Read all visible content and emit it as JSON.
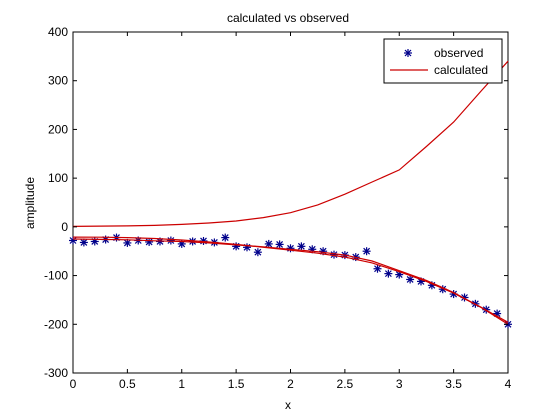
{
  "chart_data": {
    "type": "line",
    "title": "calculated vs observed",
    "xlabel": "x",
    "ylabel": "amplitude",
    "xlim": [
      0,
      4
    ],
    "ylim": [
      -300,
      400
    ],
    "xticks": [
      0,
      0.5,
      1,
      1.5,
      2,
      2.5,
      3,
      3.5,
      4
    ],
    "yticks": [
      -300,
      -200,
      -100,
      0,
      100,
      200,
      300,
      400
    ],
    "xtick_labels": [
      "0",
      "0.5",
      "1",
      "1.5",
      "2",
      "2.5",
      "3",
      "3.5",
      "4"
    ],
    "ytick_labels": [
      "-300",
      "-200",
      "-100",
      "0",
      "100",
      "200",
      "300",
      "400"
    ],
    "grid": false,
    "legend": {
      "position": "top-right",
      "entries": [
        "observed",
        "calculated"
      ]
    },
    "colors": {
      "observed": "#00008b",
      "calculated": "#cc0000",
      "axes": "#000000"
    },
    "series": [
      {
        "name": "observed",
        "style": "markers",
        "marker": "asterisk",
        "x": [
          0,
          0.1,
          0.2,
          0.3,
          0.4,
          0.5,
          0.6,
          0.7,
          0.8,
          0.9,
          1.0,
          1.1,
          1.2,
          1.3,
          1.4,
          1.5,
          1.6,
          1.7,
          1.8,
          1.9,
          2.0,
          2.1,
          2.2,
          2.3,
          2.4,
          2.5,
          2.6,
          2.7,
          2.8,
          2.9,
          3.0,
          3.1,
          3.2,
          3.3,
          3.4,
          3.5,
          3.6,
          3.7,
          3.8,
          3.9,
          4.0
        ],
        "y": [
          -28,
          -32,
          -30,
          -26,
          -22,
          -33,
          -28,
          -31,
          -30,
          -28,
          -35,
          -30,
          -29,
          -32,
          -22,
          -40,
          -42,
          -52,
          -35,
          -36,
          -44,
          -40,
          -46,
          -50,
          -57,
          -58,
          -62,
          -50,
          -86,
          -96,
          -98,
          -108,
          -112,
          -120,
          -128,
          -138,
          -145,
          -158,
          -170,
          -178,
          -200
        ]
      },
      {
        "name": "calculated",
        "style": "line",
        "x": [
          0,
          0.25,
          0.5,
          0.75,
          1.0,
          1.25,
          1.5,
          1.75,
          2.0,
          2.25,
          2.5,
          2.75,
          3.0,
          3.25,
          3.5,
          3.75,
          4.0
        ],
        "y": [
          -25,
          -25.8,
          -26.5,
          -28.7,
          -30,
          -33,
          -37,
          -41,
          -46,
          -51,
          -58,
          -70,
          -90,
          -110,
          -135,
          -165,
          -200
        ]
      },
      {
        "name": "calculated",
        "style": "line",
        "x": [
          0,
          0.25,
          0.5,
          0.75,
          1.0,
          1.25,
          1.5,
          1.75,
          2.0,
          2.25,
          2.5,
          2.75,
          3.0,
          3.25,
          3.5,
          3.75,
          4.0
        ],
        "y": [
          -21,
          -21.3,
          -22,
          -24,
          -27,
          -31,
          -36,
          -42,
          -48,
          -54,
          -62,
          -74,
          -92,
          -112,
          -136,
          -165,
          -196
        ]
      },
      {
        "name": "calculated",
        "style": "line",
        "x": [
          0,
          0.25,
          0.5,
          0.75,
          1.0,
          1.25,
          1.5,
          1.75,
          2.0,
          2.25,
          2.5,
          2.75,
          3.0,
          3.25,
          3.5,
          3.75,
          4.0
        ],
        "y": [
          1,
          1.5,
          2,
          3,
          5,
          8,
          12,
          19,
          29,
          45,
          67,
          92,
          117,
          165,
          215,
          278,
          340
        ]
      }
    ]
  }
}
